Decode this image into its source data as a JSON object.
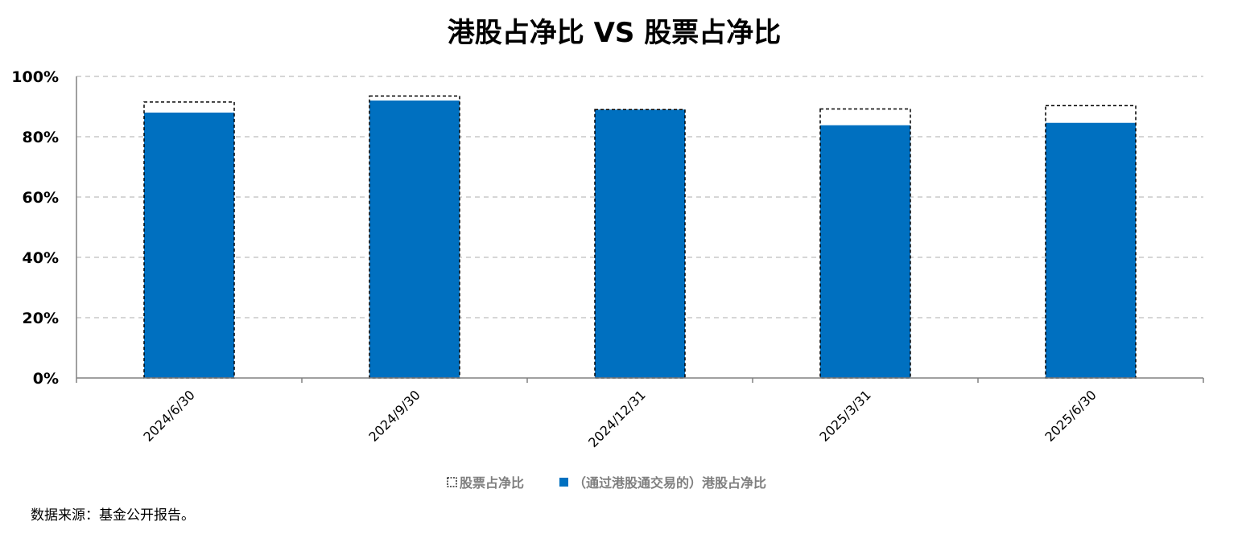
{
  "chart_data": {
    "type": "bar",
    "title": "港股占净比 VS 股票占净比",
    "categories": [
      "2024/6/30",
      "2024/9/30",
      "2024/12/31",
      "2025/3/31",
      "2025/6/30"
    ],
    "series": [
      {
        "name": "股票占净比",
        "values": [
          91.5,
          93.5,
          89.0,
          89.2,
          90.3
        ],
        "style": "dashed-outline",
        "color": "#000000"
      },
      {
        "name": "（通过港股通交易的）港股占净比",
        "values": [
          88.0,
          92.0,
          89.0,
          83.8,
          84.6
        ],
        "style": "filled",
        "color": "#0070C0"
      }
    ],
    "ylim": [
      0,
      100
    ],
    "yticks": [
      0,
      20,
      40,
      60,
      80,
      100
    ],
    "ytick_labels": [
      "0%",
      "20%",
      "40%",
      "60%",
      "80%",
      "100%"
    ],
    "xlabel": "",
    "ylabel": "",
    "grid": true,
    "legend_position": "bottom"
  },
  "source_note": "数据来源：基金公开报告。"
}
